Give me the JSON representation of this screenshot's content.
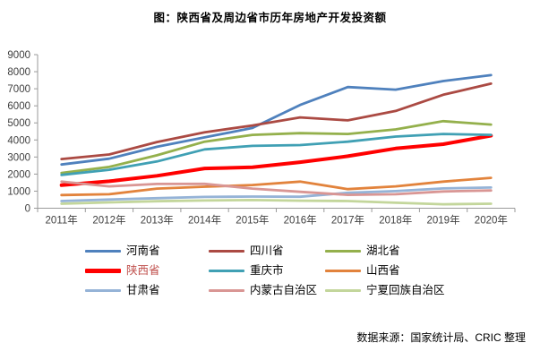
{
  "title": "图：陕西省及周边省市历年房地产开发投资额",
  "source_note": "数据来源：国家统计局、CRIC 整理",
  "chart_data": {
    "type": "line",
    "title": "图：陕西省及周边省市历年房地产开发投资额",
    "xlabel": "",
    "ylabel": "",
    "categories": [
      "2011年",
      "2012年",
      "2013年",
      "2014年",
      "2015年",
      "2016年",
      "2017年",
      "2018年",
      "2019年",
      "2020年"
    ],
    "ylim": [
      0,
      9000
    ],
    "ytick_step": 1000,
    "ytick_labels": [
      "0",
      "1000",
      "2000",
      "3000",
      "4000",
      "5000",
      "6000",
      "7000",
      "8000",
      "9000"
    ],
    "grid": false,
    "legend_position": "bottom",
    "legend_columns": 3,
    "axis_color": "#9a9a9a",
    "tick_label_color": "#3f3f3f",
    "series": [
      {
        "name": "河南省",
        "color": "#4f81bd",
        "label_color": "#000000",
        "line_width": 2.8,
        "values": [
          2560,
          2900,
          3600,
          4150,
          4700,
          6050,
          7100,
          6950,
          7450,
          7800
        ]
      },
      {
        "name": "四川省",
        "color": "#ab4a43",
        "label_color": "#000000",
        "line_width": 2.8,
        "values": [
          2880,
          3150,
          3880,
          4450,
          4850,
          5320,
          5150,
          5700,
          6650,
          7300
        ]
      },
      {
        "name": "湖北省",
        "color": "#94b04c",
        "label_color": "#000000",
        "line_width": 2.8,
        "values": [
          2070,
          2420,
          3100,
          3900,
          4300,
          4400,
          4350,
          4620,
          5100,
          4900
        ]
      },
      {
        "name": "陕西省",
        "color": "#ff0000",
        "label_color": "#c0504d",
        "line_width": 4,
        "values": [
          1350,
          1580,
          1900,
          2330,
          2400,
          2700,
          3050,
          3500,
          3750,
          4250
        ]
      },
      {
        "name": "重庆市",
        "color": "#40a0b4",
        "label_color": "#000000",
        "line_width": 2.8,
        "values": [
          1950,
          2250,
          2740,
          3450,
          3650,
          3700,
          3900,
          4200,
          4350,
          4300
        ]
      },
      {
        "name": "山西省",
        "color": "#e2833c",
        "label_color": "#000000",
        "line_width": 2.8,
        "values": [
          770,
          820,
          1150,
          1260,
          1360,
          1560,
          1120,
          1280,
          1560,
          1780
        ]
      },
      {
        "name": "甘肃省",
        "color": "#95b3d7",
        "label_color": "#000000",
        "line_width": 2.8,
        "values": [
          420,
          510,
          590,
          660,
          680,
          670,
          900,
          1000,
          1160,
          1210
        ]
      },
      {
        "name": "内蒙古自治区",
        "color": "#d99694",
        "label_color": "#000000",
        "line_width": 2.8,
        "values": [
          1560,
          1280,
          1420,
          1430,
          1150,
          960,
          780,
          820,
          980,
          1040
        ]
      },
      {
        "name": "宁夏回族自治区",
        "color": "#c3d69b",
        "label_color": "#000000",
        "line_width": 2.8,
        "values": [
          260,
          340,
          410,
          450,
          480,
          440,
          420,
          320,
          230,
          260
        ]
      }
    ]
  }
}
